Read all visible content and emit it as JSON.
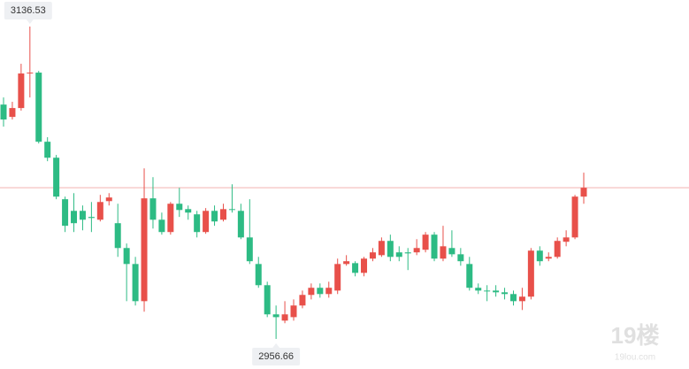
{
  "chart_data": {
    "type": "candlestick",
    "up_color": "#e8504a",
    "down_color": "#2dbb84",
    "open": [
      3091.6,
      3084.5,
      3089.6,
      3109.5,
      3110.0,
      3070.2,
      3061.0,
      3037.1,
      3030.4,
      3030.4,
      3026.9,
      3025.3,
      3036.0,
      3023.3,
      3009.0,
      2999.8,
      2978.4,
      3037.6,
      3025.3,
      3018.2,
      3034.5,
      3031.4,
      3028.4,
      3018.2,
      3030.4,
      3025.3,
      3031.4,
      3030.4,
      3015.1,
      2999.8,
      2987.6,
      2970.8,
      2967.2,
      2969.2,
      2975.9,
      2982.0,
      2986.1,
      2982.5,
      2984.5,
      2999.8,
      3000.3,
      2994.7,
      3002.9,
      3004.9,
      3013.1,
      3006.5,
      3006.5,
      3006.5,
      3008.0,
      3016.7,
      3002.9,
      3009.0,
      3005.4,
      2999.8,
      2986.1,
      2984.5,
      2984.5,
      2983.5,
      2982.5,
      2978.4,
      2981.0,
      3007.5,
      3002.9,
      3003.9,
      3012.6,
      3015.1,
      3038.6
    ],
    "high": [
      3095.7,
      3093.2,
      3115.1,
      3136.53,
      3111.0,
      3072.8,
      3062.6,
      3038.6,
      3040.6,
      3033.5,
      3035.5,
      3039.6,
      3040.6,
      3034.5,
      3011.6,
      3003.9,
      3054.9,
      3049.8,
      3029.4,
      3035.5,
      3043.7,
      3033.5,
      3030.4,
      3032.0,
      3033.5,
      3034.5,
      3045.7,
      3034.5,
      3037.1,
      3003.9,
      2989.6,
      2975.9,
      2978.4,
      2979.4,
      2984.5,
      2988.6,
      2988.6,
      2989.6,
      3002.9,
      3004.9,
      3001.4,
      3003.9,
      3009.0,
      3015.1,
      3016.7,
      3010.0,
      3009.0,
      3014.1,
      3018.2,
      3018.2,
      3021.8,
      3019.2,
      3009.0,
      3003.9,
      2988.6,
      2987.6,
      2987.6,
      2986.1,
      2984.5,
      2986.1,
      3009.0,
      3010.0,
      3006.5,
      3015.1,
      3019.2,
      3039.6,
      3052.4
    ],
    "low": [
      3078.9,
      3083.0,
      3088.1,
      3095.7,
      3069.2,
      3059.0,
      3037.1,
      3018.2,
      3018.2,
      3019.2,
      3018.2,
      3024.3,
      3033.5,
      3003.9,
      2978.4,
      2975.9,
      2972.3,
      3020.2,
      3016.7,
      3016.7,
      3026.9,
      3025.3,
      3015.1,
      3017.2,
      3021.8,
      3024.3,
      3029.4,
      3014.1,
      2999.8,
      2986.1,
      2969.2,
      2956.66,
      2965.7,
      2967.2,
      2974.3,
      2979.4,
      2980.4,
      2980.4,
      2982.5,
      2998.8,
      2992.7,
      2992.7,
      3001.4,
      3003.9,
      3001.4,
      3001.4,
      2996.3,
      3004.9,
      3006.5,
      3001.4,
      3001.4,
      3003.9,
      2998.8,
      2984.5,
      2982.5,
      2978.4,
      2981.0,
      2979.4,
      2975.9,
      2973.3,
      2979.4,
      2998.8,
      3001.4,
      3002.9,
      3010.0,
      3014.1,
      3034.5
    ],
    "close": [
      3083.0,
      3089.6,
      3109.5,
      3110.0,
      3070.2,
      3061.0,
      3038.6,
      3021.8,
      3023.3,
      3025.3,
      3026.3,
      3035.5,
      3038.1,
      3009.0,
      2999.8,
      2978.4,
      3037.6,
      3025.3,
      3018.2,
      3034.5,
      3030.9,
      3029.4,
      3018.2,
      3030.4,
      3024.3,
      3031.4,
      3030.9,
      3015.1,
      3001.4,
      2987.6,
      2970.8,
      2969.2,
      2970.8,
      2975.9,
      2982.0,
      2986.1,
      2982.5,
      2986.1,
      2999.8,
      3001.4,
      2994.7,
      3002.9,
      3006.5,
      3013.1,
      3003.9,
      3003.9,
      3005.9,
      3009.0,
      3016.7,
      3002.9,
      3010.0,
      3005.4,
      3001.4,
      2986.1,
      2984.5,
      2984.0,
      2983.5,
      2982.5,
      2978.4,
      2981.0,
      3007.5,
      3001.4,
      3003.9,
      3013.1,
      3015.1,
      3038.6,
      3043.7
    ]
  },
  "watermark": {
    "logo": "19楼",
    "site": "19lou.com"
  }
}
